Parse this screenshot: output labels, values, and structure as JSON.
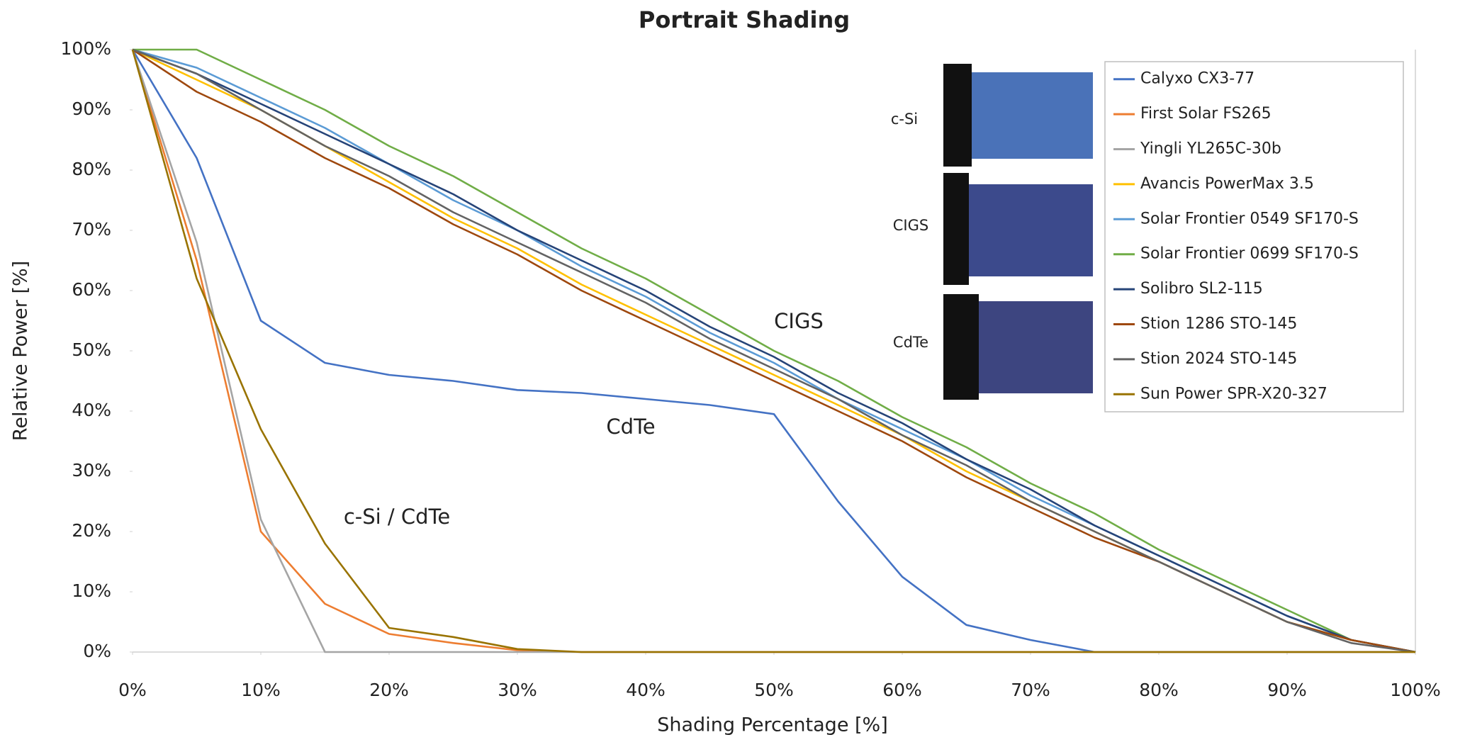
{
  "chart_data": {
    "type": "line",
    "title": "Portrait Shading",
    "x_label": "Shading Percentage [%]",
    "y_label": "Relative Power [%]",
    "x": [
      0,
      5,
      10,
      15,
      20,
      25,
      30,
      35,
      40,
      45,
      50,
      55,
      60,
      65,
      70,
      75,
      80,
      85,
      90,
      95,
      100
    ],
    "xlim": [
      0,
      100
    ],
    "xticks": [
      {
        "value": 0,
        "label": "0%"
      },
      {
        "value": 10,
        "label": "10%"
      },
      {
        "value": 20,
        "label": "20%"
      },
      {
        "value": 30,
        "label": "30%"
      },
      {
        "value": 40,
        "label": "40%"
      },
      {
        "value": 50,
        "label": "50%"
      },
      {
        "value": 60,
        "label": "60%"
      },
      {
        "value": 70,
        "label": "70%"
      },
      {
        "value": 80,
        "label": "80%"
      },
      {
        "value": 90,
        "label": "90%"
      },
      {
        "value": 100,
        "label": "100%"
      }
    ],
    "ylim": [
      0,
      100
    ],
    "yticks": [
      {
        "value": 0,
        "label": "0%"
      },
      {
        "value": 10,
        "label": "10%"
      },
      {
        "value": 20,
        "label": "20%"
      },
      {
        "value": 30,
        "label": "30%"
      },
      {
        "value": 40,
        "label": "40%"
      },
      {
        "value": 50,
        "label": "50%"
      },
      {
        "value": 60,
        "label": "60%"
      },
      {
        "value": 70,
        "label": "70%"
      },
      {
        "value": 80,
        "label": "80%"
      },
      {
        "value": 90,
        "label": "90%"
      },
      {
        "value": 100,
        "label": "100%"
      }
    ],
    "grid": false,
    "legend": "top-right",
    "series": [
      {
        "name": "Calyxo CX3-77",
        "color": "#4472c4",
        "values": [
          100,
          82,
          55,
          48,
          46,
          45,
          43.5,
          43,
          42,
          41,
          39.5,
          25,
          12.5,
          4.5,
          2,
          0,
          0,
          0,
          0,
          0,
          0
        ]
      },
      {
        "name": "First Solar FS265",
        "color": "#ed7d31",
        "values": [
          100,
          65,
          20,
          8,
          3,
          1.5,
          0.3,
          0,
          0,
          0,
          0,
          0,
          0,
          0,
          0,
          0,
          0,
          0,
          0,
          0,
          0
        ]
      },
      {
        "name": "Yingli YL265C-30b",
        "color": "#a5a5a5",
        "values": [
          100,
          68,
          22,
          0,
          0,
          0,
          0,
          0,
          0,
          0,
          0,
          0,
          0,
          0,
          0,
          0,
          0,
          0,
          0,
          0,
          0
        ]
      },
      {
        "name": "Avancis PowerMax 3.5",
        "color": "#ffc000",
        "values": [
          100,
          95,
          90,
          84,
          78,
          72,
          67,
          61,
          56,
          51,
          46,
          41,
          36,
          30,
          25,
          20,
          15,
          10,
          5,
          2,
          0
        ]
      },
      {
        "name": "Solar Frontier 0549 SF170-S",
        "color": "#5b9bd5",
        "values": [
          100,
          97,
          92,
          87,
          81,
          75,
          70,
          64,
          59,
          53,
          48,
          42,
          37,
          32,
          26,
          21,
          16,
          11,
          6,
          2,
          0
        ]
      },
      {
        "name": "Solar Frontier 0699 SF170-S",
        "color": "#70ad47",
        "values": [
          100,
          100,
          95,
          90,
          84,
          79,
          73,
          67,
          62,
          56,
          50,
          45,
          39,
          34,
          28,
          23,
          17,
          12,
          7,
          2,
          0
        ]
      },
      {
        "name": "Solibro SL2-115",
        "color": "#264478",
        "values": [
          100,
          96,
          91,
          86,
          81,
          76,
          70,
          65,
          60,
          54,
          49,
          43,
          38,
          32,
          27,
          21,
          16,
          11,
          6,
          2,
          0
        ]
      },
      {
        "name": "Stion 1286 STO-145",
        "color": "#9e480e",
        "values": [
          100,
          93,
          88,
          82,
          77,
          71,
          66,
          60,
          55,
          50,
          45,
          40,
          35,
          29,
          24,
          19,
          15,
          10,
          5,
          2,
          0
        ]
      },
      {
        "name": "Stion 2024 STO-145",
        "color": "#636363",
        "values": [
          100,
          96,
          90,
          84,
          79,
          73,
          68,
          63,
          58,
          52,
          47,
          42,
          36,
          31,
          25,
          20,
          15,
          10,
          5,
          1.5,
          0
        ]
      },
      {
        "name": "Sun Power SPR-X20-327",
        "color": "#997300",
        "values": [
          100,
          62,
          37,
          18,
          4,
          2.5,
          0.5,
          0,
          0,
          0,
          0,
          0,
          0,
          0,
          0,
          0,
          0,
          0,
          0,
          0,
          0
        ]
      }
    ],
    "annotations": [
      "CIGS",
      "CdTe",
      "c-Si / CdTe"
    ],
    "inset_labels": [
      "c-Si",
      "CIGS",
      "CdTe"
    ]
  }
}
